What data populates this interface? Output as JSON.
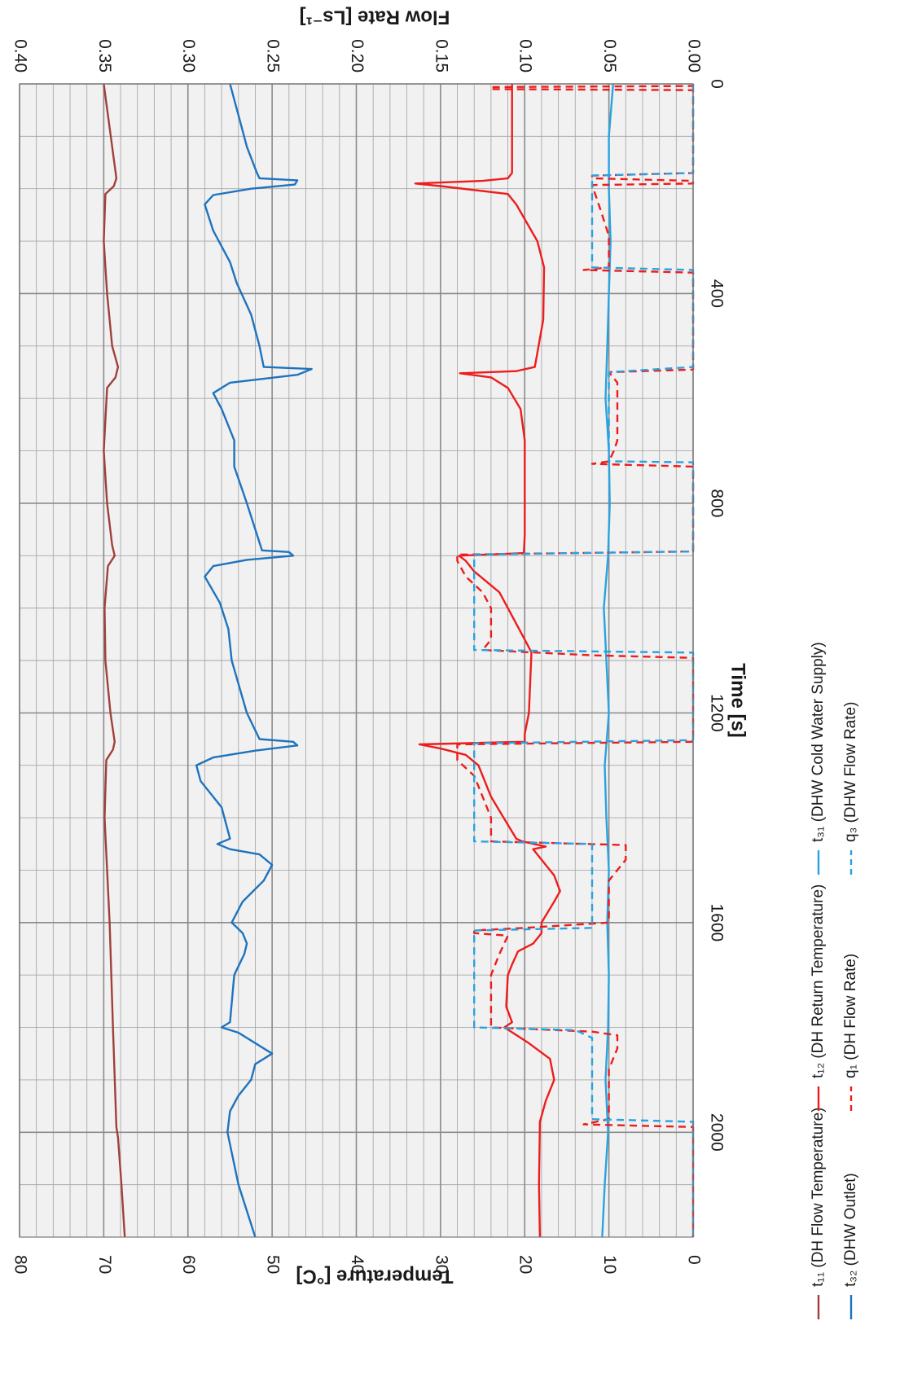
{
  "chart_data": {
    "type": "line",
    "orientation": "rotated 90° clockwise (time axis vertical, temperature axis horizontal)",
    "xlabel": "Time [s]",
    "ylabel": "Temperature [°C]",
    "y2label": "Flow Rate [Ls⁻¹]",
    "xlim": [
      0,
      2200
    ],
    "ylim": [
      0,
      80
    ],
    "y2lim": [
      0,
      0.4
    ],
    "x_ticks": [
      "0",
      "400",
      "800",
      "1200",
      "1600",
      "2000"
    ],
    "y_ticks": [
      "0",
      "10",
      "20",
      "30",
      "40",
      "50",
      "60",
      "70",
      "80"
    ],
    "y2_ticks": [
      "0.00",
      "0.05",
      "0.10",
      "0.15",
      "0.20",
      "0.25",
      "0.30",
      "0.35",
      "0.40"
    ],
    "grid": true,
    "legend_position": "right",
    "series": [
      {
        "name": "t₁₁ (DH Flow Temperature)",
        "axis": "left",
        "color": "#A0403A",
        "dash": "solid",
        "points": [
          [
            0,
            70
          ],
          [
            180,
            68.5
          ],
          [
            195,
            68.8
          ],
          [
            210,
            69.8
          ],
          [
            300,
            70
          ],
          [
            400,
            69.6
          ],
          [
            500,
            69
          ],
          [
            540,
            68.3
          ],
          [
            560,
            68.6
          ],
          [
            580,
            69.6
          ],
          [
            700,
            70
          ],
          [
            800,
            69.6
          ],
          [
            880,
            69
          ],
          [
            900,
            68.7
          ],
          [
            920,
            69.5
          ],
          [
            1000,
            69.9
          ],
          [
            1100,
            69.8
          ],
          [
            1200,
            69.2
          ],
          [
            1255,
            68.7
          ],
          [
            1270,
            68.9
          ],
          [
            1290,
            69.7
          ],
          [
            1400,
            69.9
          ],
          [
            1600,
            69.3
          ],
          [
            1800,
            68.9
          ],
          [
            1990,
            68.5
          ],
          [
            2010,
            68.3
          ],
          [
            2100,
            67.9
          ],
          [
            2200,
            67.5
          ]
        ]
      },
      {
        "name": "t₁₂ (DH Return Temperature)",
        "axis": "left",
        "color": "#EE1C1C",
        "dash": "solid",
        "points": [
          [
            0,
            21.5
          ],
          [
            10,
            21.5
          ],
          [
            15,
            21.5
          ],
          [
            170,
            21.5
          ],
          [
            180,
            22
          ],
          [
            185,
            25
          ],
          [
            190,
            33
          ],
          [
            195,
            30
          ],
          [
            210,
            22
          ],
          [
            230,
            21
          ],
          [
            300,
            18.5
          ],
          [
            350,
            17.7
          ],
          [
            450,
            17.8
          ],
          [
            540,
            18.8
          ],
          [
            548,
            21
          ],
          [
            552,
            27.7
          ],
          [
            560,
            24
          ],
          [
            580,
            22
          ],
          [
            620,
            20.5
          ],
          [
            680,
            20
          ],
          [
            860,
            20
          ],
          [
            895,
            20.1
          ],
          [
            900,
            27.8
          ],
          [
            910,
            27
          ],
          [
            930,
            26
          ],
          [
            970,
            23
          ],
          [
            1030,
            21
          ],
          [
            1075,
            19.5
          ],
          [
            1085,
            19.2
          ],
          [
            1200,
            19.5
          ],
          [
            1240,
            20
          ],
          [
            1255,
            20
          ],
          [
            1260,
            32.5
          ],
          [
            1268,
            30
          ],
          [
            1280,
            27
          ],
          [
            1300,
            25.5
          ],
          [
            1360,
            24
          ],
          [
            1400,
            22.5
          ],
          [
            1440,
            21
          ],
          [
            1445,
            20.3
          ],
          [
            1455,
            17.5
          ],
          [
            1460,
            19
          ],
          [
            1510,
            16.5
          ],
          [
            1540,
            15.8
          ],
          [
            1560,
            16.5
          ],
          [
            1600,
            18
          ],
          [
            1620,
            18
          ],
          [
            1640,
            19
          ],
          [
            1655,
            20.8
          ],
          [
            1680,
            21.5
          ],
          [
            1700,
            22
          ],
          [
            1760,
            22.2
          ],
          [
            1790,
            21.5
          ],
          [
            1800,
            22.4
          ],
          [
            1830,
            19.5
          ],
          [
            1860,
            17
          ],
          [
            1900,
            16.5
          ],
          [
            1940,
            17.5
          ],
          [
            1980,
            18.2
          ],
          [
            2100,
            18.3
          ],
          [
            2200,
            18.2
          ]
        ]
      },
      {
        "name": "t₃₁ (DHW Cold Water Supply)",
        "axis": "left",
        "color": "#29A3E0",
        "dash": "solid",
        "points": [
          [
            0,
            9.5
          ],
          [
            100,
            10
          ],
          [
            200,
            10
          ],
          [
            300,
            9.8
          ],
          [
            400,
            10
          ],
          [
            500,
            10.2
          ],
          [
            600,
            10.4
          ],
          [
            700,
            10
          ],
          [
            800,
            9.9
          ],
          [
            900,
            10.1
          ],
          [
            1000,
            10.6
          ],
          [
            1100,
            10.3
          ],
          [
            1200,
            10
          ],
          [
            1300,
            10.5
          ],
          [
            1400,
            10.3
          ],
          [
            1500,
            10
          ],
          [
            1600,
            10.2
          ],
          [
            1700,
            10
          ],
          [
            1800,
            10.1
          ],
          [
            1900,
            10.4
          ],
          [
            2000,
            10.1
          ],
          [
            2100,
            10.5
          ],
          [
            2200,
            10.8
          ]
        ]
      },
      {
        "name": "t₃₂ (DHW Outlet)",
        "axis": "left",
        "color": "#1E73BE",
        "dash": "solid",
        "points": [
          [
            0,
            55
          ],
          [
            60,
            54
          ],
          [
            120,
            53
          ],
          [
            170,
            51.8
          ],
          [
            180,
            51.5
          ],
          [
            184,
            47
          ],
          [
            192,
            47.3
          ],
          [
            200,
            52.5
          ],
          [
            212,
            57
          ],
          [
            230,
            58
          ],
          [
            280,
            57
          ],
          [
            340,
            55
          ],
          [
            380,
            54.2
          ],
          [
            440,
            52.5
          ],
          [
            500,
            51.5
          ],
          [
            540,
            51
          ],
          [
            544,
            45.3
          ],
          [
            555,
            47
          ],
          [
            570,
            55
          ],
          [
            590,
            57
          ],
          [
            620,
            56
          ],
          [
            680,
            54.5
          ],
          [
            730,
            54.5
          ],
          [
            800,
            53
          ],
          [
            890,
            51.2
          ],
          [
            893,
            48
          ],
          [
            900,
            47.5
          ],
          [
            908,
            53
          ],
          [
            920,
            57
          ],
          [
            940,
            58
          ],
          [
            990,
            56.2
          ],
          [
            1040,
            55.2
          ],
          [
            1100,
            54.8
          ],
          [
            1200,
            53
          ],
          [
            1250,
            51.5
          ],
          [
            1255,
            47.5
          ],
          [
            1262,
            47
          ],
          [
            1272,
            52
          ],
          [
            1285,
            57
          ],
          [
            1300,
            59
          ],
          [
            1330,
            58.5
          ],
          [
            1380,
            56
          ],
          [
            1440,
            55
          ],
          [
            1450,
            56.5
          ],
          [
            1460,
            55
          ],
          [
            1470,
            51.5
          ],
          [
            1490,
            50
          ],
          [
            1520,
            51
          ],
          [
            1560,
            53.5
          ],
          [
            1600,
            54.8
          ],
          [
            1620,
            53.5
          ],
          [
            1640,
            53
          ],
          [
            1660,
            53.3
          ],
          [
            1700,
            54.5
          ],
          [
            1790,
            55
          ],
          [
            1800,
            56
          ],
          [
            1810,
            54
          ],
          [
            1850,
            50
          ],
          [
            1870,
            52
          ],
          [
            1900,
            52.5
          ],
          [
            1930,
            54
          ],
          [
            1960,
            55
          ],
          [
            2000,
            55.3
          ],
          [
            2100,
            54
          ],
          [
            2200,
            52
          ]
        ]
      },
      {
        "name": "q₁ (DH Flow Rate)",
        "axis": "right",
        "color": "#EE1C1C",
        "dash": "dashed",
        "points": [
          [
            0,
            0
          ],
          [
            4,
            0
          ],
          [
            6,
            0.12
          ],
          [
            10,
            0.12
          ],
          [
            12,
            0
          ],
          [
            170,
            0
          ],
          [
            175,
            0.06
          ],
          [
            180,
            0.06
          ],
          [
            185,
            0
          ],
          [
            190,
            0
          ],
          [
            193,
            0.06
          ],
          [
            240,
            0.055
          ],
          [
            290,
            0.05
          ],
          [
            350,
            0.05
          ],
          [
            355,
            0.065
          ],
          [
            360,
            0
          ],
          [
            530,
            0
          ],
          [
            545,
            0
          ],
          [
            550,
            0.05
          ],
          [
            570,
            0.045
          ],
          [
            620,
            0.045
          ],
          [
            680,
            0.045
          ],
          [
            700,
            0.047
          ],
          [
            720,
            0.05
          ],
          [
            725,
            0.06
          ],
          [
            730,
            0
          ],
          [
            880,
            0
          ],
          [
            892,
            0
          ],
          [
            898,
            0.14
          ],
          [
            910,
            0.14
          ],
          [
            940,
            0.135
          ],
          [
            970,
            0.125
          ],
          [
            1000,
            0.12
          ],
          [
            1060,
            0.12
          ],
          [
            1080,
            0.125
          ],
          [
            1090,
            0.06
          ],
          [
            1095,
            0
          ],
          [
            1250,
            0
          ],
          [
            1255,
            0
          ],
          [
            1260,
            0.14
          ],
          [
            1290,
            0.14
          ],
          [
            1320,
            0.13
          ],
          [
            1360,
            0.125
          ],
          [
            1400,
            0.12
          ],
          [
            1440,
            0.12
          ],
          [
            1445,
            0.12
          ],
          [
            1452,
            0.04
          ],
          [
            1460,
            0.04
          ],
          [
            1480,
            0.04
          ],
          [
            1520,
            0.05
          ],
          [
            1560,
            0.05
          ],
          [
            1600,
            0.05
          ],
          [
            1610,
            0.1
          ],
          [
            1615,
            0.13
          ],
          [
            1620,
            0.13
          ],
          [
            1625,
            0.11
          ],
          [
            1660,
            0.115
          ],
          [
            1700,
            0.12
          ],
          [
            1760,
            0.12
          ],
          [
            1790,
            0.12
          ],
          [
            1800,
            0.12
          ],
          [
            1808,
            0.06
          ],
          [
            1815,
            0.045
          ],
          [
            1840,
            0.045
          ],
          [
            1880,
            0.05
          ],
          [
            1940,
            0.05
          ],
          [
            1975,
            0.05
          ],
          [
            1985,
            0.065
          ],
          [
            1990,
            0
          ],
          [
            2200,
            0
          ]
        ]
      },
      {
        "name": "q₃ (DHW Flow Rate)",
        "axis": "right",
        "color": "#29A3E0",
        "dash": "dashed",
        "points": [
          [
            0,
            0
          ],
          [
            170,
            0
          ],
          [
            175,
            0.06
          ],
          [
            200,
            0.06
          ],
          [
            240,
            0.06
          ],
          [
            300,
            0.06
          ],
          [
            350,
            0.06
          ],
          [
            355,
            0
          ],
          [
            540,
            0
          ],
          [
            550,
            0.05
          ],
          [
            600,
            0.05
          ],
          [
            650,
            0.05
          ],
          [
            700,
            0.05
          ],
          [
            720,
            0.05
          ],
          [
            722,
            0
          ],
          [
            892,
            0
          ],
          [
            898,
            0.13
          ],
          [
            920,
            0.13
          ],
          [
            960,
            0.13
          ],
          [
            1000,
            0.13
          ],
          [
            1040,
            0.13
          ],
          [
            1080,
            0.13
          ],
          [
            1085,
            0
          ],
          [
            1252,
            0
          ],
          [
            1258,
            0.13
          ],
          [
            1300,
            0.13
          ],
          [
            1360,
            0.13
          ],
          [
            1400,
            0.13
          ],
          [
            1440,
            0.13
          ],
          [
            1445,
            0.13
          ],
          [
            1450,
            0.06
          ],
          [
            1470,
            0.06
          ],
          [
            1500,
            0.06
          ],
          [
            1560,
            0.06
          ],
          [
            1600,
            0.06
          ],
          [
            1610,
            0.06
          ],
          [
            1615,
            0.13
          ],
          [
            1640,
            0.13
          ],
          [
            1680,
            0.13
          ],
          [
            1720,
            0.13
          ],
          [
            1760,
            0.13
          ],
          [
            1800,
            0.13
          ],
          [
            1805,
            0.07
          ],
          [
            1820,
            0.06
          ],
          [
            1860,
            0.06
          ],
          [
            1920,
            0.06
          ],
          [
            1975,
            0.06
          ],
          [
            1980,
            0
          ],
          [
            2200,
            0
          ]
        ]
      }
    ]
  }
}
